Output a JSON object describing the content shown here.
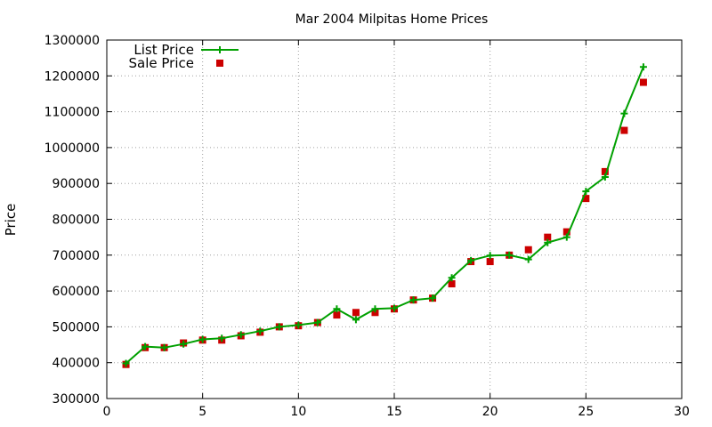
{
  "chart_data": {
    "type": "line",
    "title": "Mar 2004 Milpitas Home Prices",
    "xlabel": "",
    "ylabel": "Price",
    "xlim": [
      0,
      30
    ],
    "ylim": [
      300000,
      1300000
    ],
    "x_ticks": [
      "0",
      "5",
      "10",
      "15",
      "20",
      "25",
      "30"
    ],
    "y_ticks": [
      "300000",
      "400000",
      "500000",
      "600000",
      "700000",
      "800000",
      "900000",
      "1000000",
      "1100000",
      "1200000",
      "1300000"
    ],
    "grid": true,
    "legend_position": "top-left",
    "series": [
      {
        "name": "List Price",
        "style": "line+cross",
        "color": "#00a000",
        "x": [
          1,
          2,
          3,
          4,
          5,
          6,
          7,
          8,
          9,
          10,
          11,
          12,
          13,
          14,
          15,
          16,
          17,
          18,
          19,
          20,
          21,
          22,
          23,
          24,
          25,
          26,
          27,
          28
        ],
        "values": [
          398000,
          445000,
          442000,
          452000,
          465000,
          468000,
          478000,
          488000,
          500000,
          505000,
          512000,
          550000,
          520000,
          550000,
          552000,
          575000,
          580000,
          637000,
          685000,
          699000,
          700000,
          688000,
          735000,
          750000,
          878000,
          918000,
          1095000,
          1225000
        ]
      },
      {
        "name": "Sale Price",
        "style": "points",
        "color": "#cc0000",
        "x": [
          1,
          2,
          3,
          4,
          5,
          6,
          7,
          8,
          9,
          10,
          11,
          12,
          13,
          14,
          15,
          16,
          17,
          18,
          19,
          20,
          21,
          22,
          23,
          24,
          25,
          26,
          27,
          28
        ],
        "values": [
          395000,
          442000,
          442000,
          455000,
          463000,
          463000,
          475000,
          485000,
          500000,
          503000,
          512000,
          533000,
          540000,
          540000,
          550000,
          575000,
          580000,
          620000,
          682000,
          682000,
          700000,
          715000,
          750000,
          765000,
          858000,
          933000,
          1048000,
          1182000
        ]
      }
    ]
  }
}
